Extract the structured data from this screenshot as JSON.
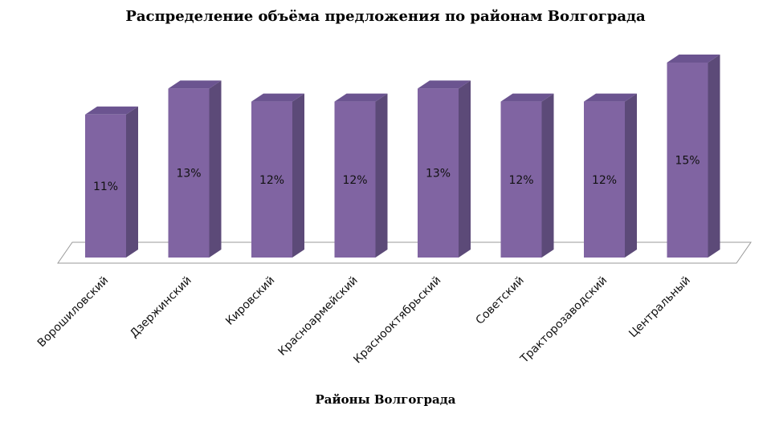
{
  "chart_data": {
    "type": "bar",
    "title": "Распределение объёма предложения по районам Волгограда",
    "xlabel": "Районы Волгограда",
    "ylabel": "",
    "categories": [
      "Ворошиловский",
      "Дзержинский",
      "Кировский",
      "Красноармейский",
      "Краснооктябрьский",
      "Советский",
      "Тракторозаводский",
      "Центральный"
    ],
    "values": [
      11,
      13,
      12,
      12,
      13,
      12,
      12,
      15
    ],
    "value_labels": [
      "11%",
      "13%",
      "12%",
      "12%",
      "13%",
      "12%",
      "12%",
      "15%"
    ],
    "ylim": [
      0,
      15
    ],
    "grid": false,
    "legend": "none",
    "colors": {
      "front": "#8064a2",
      "side": "#5c4a78",
      "top": "#6b5490",
      "floor": "#ffffff",
      "floor_edge": "#999999"
    }
  }
}
